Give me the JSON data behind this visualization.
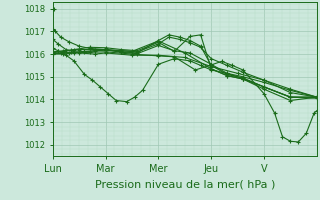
{
  "background_color": "#cce8dc",
  "line_color": "#1a6b1a",
  "marker": "+",
  "markersize": 3,
  "linewidth": 0.8,
  "xlim": [
    0,
    5.0
  ],
  "ylim": [
    1011.5,
    1018.3
  ],
  "yticks": [
    1012,
    1013,
    1014,
    1015,
    1016,
    1017,
    1018
  ],
  "xtick_labels": [
    "Lun",
    "Mar",
    "Mer",
    "Jeu",
    "V"
  ],
  "xtick_pos": [
    0,
    1,
    2,
    3,
    4
  ],
  "xlabel": "Pression niveau de la mer( hPa )",
  "xlabel_fontsize": 8,
  "ytick_fontsize": 6,
  "xtick_fontsize": 7,
  "grid_color": "#a0c8b4",
  "minor_grid_color": "#b8dcc8",
  "series": [
    [
      0.02,
      1018.0
    ],
    [
      0.0,
      1017.1,
      0.05,
      1017.0,
      0.15,
      1016.75,
      0.3,
      1016.55,
      0.5,
      1016.35,
      0.7,
      1016.25,
      1.0,
      1016.2,
      1.3,
      1016.15,
      1.6,
      1016.1,
      2.0,
      1016.45,
      2.2,
      1016.75,
      2.4,
      1016.65,
      2.6,
      1016.5,
      2.8,
      1016.3,
      3.0,
      1015.8,
      3.3,
      1015.5,
      3.6,
      1015.2,
      4.0,
      1014.85,
      4.5,
      1014.3,
      5.0,
      1014.1
    ],
    [
      0.0,
      1016.65,
      0.1,
      1016.45,
      0.25,
      1016.2,
      0.5,
      1016.05,
      0.8,
      1016.0,
      1.0,
      1016.05,
      1.5,
      1015.95,
      2.0,
      1015.95,
      2.5,
      1015.85,
      3.0,
      1015.45,
      3.5,
      1015.15,
      4.0,
      1014.85,
      4.5,
      1014.45,
      5.0,
      1014.1
    ],
    [
      0.0,
      1016.25,
      0.1,
      1016.15,
      0.25,
      1015.95,
      0.4,
      1015.7,
      0.6,
      1015.1,
      0.75,
      1014.85,
      0.9,
      1014.55,
      1.05,
      1014.25,
      1.2,
      1013.95,
      1.4,
      1013.9,
      1.55,
      1014.1,
      1.7,
      1014.4,
      2.0,
      1015.55,
      2.3,
      1015.8,
      2.6,
      1015.7,
      2.8,
      1015.5,
      3.0,
      1015.3,
      3.3,
      1015.15,
      3.6,
      1015.0,
      4.0,
      1014.75,
      4.5,
      1014.4,
      5.0,
      1014.1
    ],
    [
      0.0,
      1016.1,
      0.1,
      1016.12,
      0.2,
      1016.15,
      0.35,
      1016.18,
      0.5,
      1016.2,
      0.8,
      1016.2,
      1.0,
      1016.2,
      1.3,
      1016.1,
      1.6,
      1016.05,
      2.0,
      1016.6,
      2.2,
      1016.85,
      2.4,
      1016.75,
      2.6,
      1016.6,
      2.8,
      1016.35,
      3.0,
      1015.5,
      3.3,
      1015.1,
      3.6,
      1014.95,
      4.0,
      1014.55,
      4.5,
      1014.1,
      5.0,
      1014.1
    ],
    [
      0.0,
      1016.05,
      0.15,
      1016.05,
      0.35,
      1016.08,
      0.6,
      1016.12,
      0.8,
      1016.15,
      1.0,
      1016.18,
      1.3,
      1016.08,
      1.6,
      1016.02,
      2.0,
      1016.38,
      2.3,
      1016.15,
      2.6,
      1016.05,
      3.0,
      1015.55,
      3.3,
      1015.15,
      3.6,
      1014.92,
      4.0,
      1014.55,
      4.5,
      1014.1,
      5.0,
      1014.05
    ],
    [
      0.0,
      1016.02,
      0.2,
      1016.0,
      0.4,
      1016.05,
      0.7,
      1016.08,
      1.0,
      1016.1,
      1.5,
      1016.0,
      2.0,
      1015.92,
      2.3,
      1015.88,
      2.7,
      1015.3,
      3.0,
      1015.52,
      3.2,
      1015.68,
      3.4,
      1015.5,
      3.6,
      1015.3,
      4.0,
      1014.25,
      4.2,
      1013.4,
      4.35,
      1012.35,
      4.5,
      1012.15,
      4.65,
      1012.12,
      4.8,
      1012.5,
      4.95,
      1013.4,
      5.0,
      1013.5
    ],
    [
      0.0,
      1016.08,
      0.2,
      1016.1,
      0.4,
      1016.2,
      0.7,
      1016.3,
      1.0,
      1016.28,
      1.3,
      1016.2,
      1.6,
      1016.15,
      2.0,
      1016.52,
      2.3,
      1016.12,
      2.6,
      1016.78,
      2.8,
      1016.85,
      3.0,
      1015.35,
      3.3,
      1015.05,
      3.6,
      1014.9,
      4.0,
      1014.45,
      4.5,
      1013.95,
      5.0,
      1014.1
    ],
    [
      0.0,
      1016.0,
      0.3,
      1016.05,
      0.6,
      1016.1,
      1.0,
      1016.18,
      1.5,
      1016.12,
      2.0,
      1016.58,
      2.5,
      1016.05,
      3.0,
      1015.35,
      3.3,
      1015.05,
      3.6,
      1014.9,
      4.0,
      1014.55,
      4.5,
      1014.1,
      5.0,
      1014.1
    ]
  ]
}
